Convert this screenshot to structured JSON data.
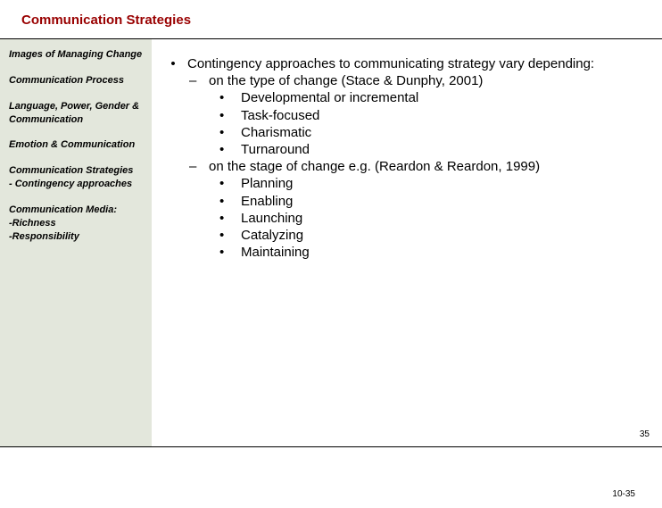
{
  "title": "Communication Strategies",
  "colors": {
    "title_color": "#990000",
    "sidebar_bg": "#e3e7dc",
    "text": "#000000",
    "background": "#ffffff"
  },
  "sidebar": {
    "items": [
      "Images of Managing Change",
      "Communication Process",
      "Language, Power, Gender & Communication",
      "Emotion & Communication",
      "Communication Strategies\n- Contingency approaches",
      "Communication Media:\n-Richness\n-Responsibility"
    ]
  },
  "content": {
    "main": "Contingency approaches to communicating strategy vary depending:",
    "sub1": {
      "text": "on the type of change (Stace & Dunphy, 2001)",
      "items": [
        "Developmental or incremental",
        "Task-focused",
        "Charismatic",
        "Turnaround"
      ]
    },
    "sub2": {
      "text": "on the stage of change e.g. (Reardon & Reardon, 1999)",
      "items": [
        "Planning",
        "Enabling",
        "Launching",
        "Catalyzing",
        "Maintaining"
      ]
    }
  },
  "page_number_small": "35",
  "footer_pagenum": "10-35"
}
